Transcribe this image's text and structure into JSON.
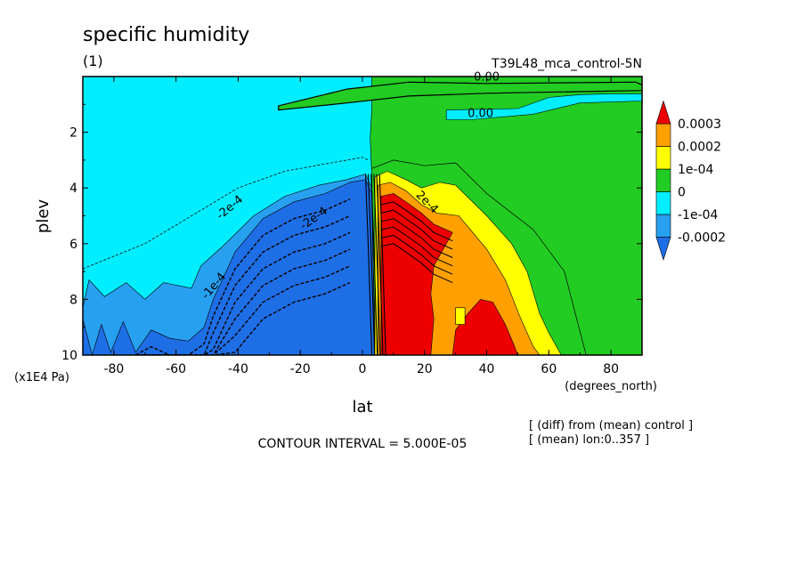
{
  "chart_data": {
    "type": "heatmap",
    "title": "specific humidity",
    "subtitle": "(1)",
    "run_label": "T39L48_mca_control-5N",
    "xlabel": "lat",
    "xunits": "(degrees_north)",
    "ylabel": "plev",
    "yunits": "(x1E4 Pa)",
    "xlim": [
      -90,
      90
    ],
    "ylim": [
      10,
      0
    ],
    "y_inverted": true,
    "xticks": [
      -80,
      -60,
      -40,
      -20,
      0,
      20,
      40,
      60,
      80
    ],
    "yticks": [
      2,
      4,
      6,
      8,
      10
    ],
    "contour_interval_text": "CONTOUR INTERVAL = 5.000E-05",
    "notes": [
      "[ (diff) from (mean) control ]",
      "[ (mean) lon:0..357 ]"
    ],
    "contour_labels": [
      "0.00",
      "0.00",
      "-1e-4",
      "-2e-4",
      "-2e-4",
      "2e-4"
    ],
    "colorbar": {
      "labels": [
        "0.0003",
        "0.0002",
        "1e-04",
        "0",
        "-1e-04",
        "-0.0002"
      ],
      "levels": [
        -0.0002,
        -0.0001,
        0,
        0.0001,
        0.0002,
        0.0003
      ],
      "colors": [
        "#1e6ee6",
        "#28a0f0",
        "#00eeff",
        "#22cc22",
        "#ffff00",
        "#ffa000",
        "#ee0000"
      ]
    },
    "regions": [
      {
        "level_index": 3,
        "points": [
          [
            -90,
            0
          ],
          [
            90,
            0
          ],
          [
            90,
            10
          ],
          [
            -90,
            10
          ]
        ]
      },
      {
        "level_index": 2,
        "points": [
          [
            -90,
            0
          ],
          [
            3,
            0
          ],
          [
            3,
            1.2
          ],
          [
            2.5,
            2.2
          ],
          [
            3,
            3.5
          ],
          [
            4,
            10
          ],
          [
            -90,
            10
          ]
        ]
      },
      {
        "level_index": 3,
        "points": [
          [
            -27,
            1.05
          ],
          [
            -5,
            0.45
          ],
          [
            15,
            0.2
          ],
          [
            40,
            0.25
          ],
          [
            88,
            0.2
          ],
          [
            90,
            0.3
          ],
          [
            90,
            0.5
          ],
          [
            40,
            0.6
          ],
          [
            15,
            0.7
          ],
          [
            -5,
            0.95
          ],
          [
            -27,
            1.2
          ]
        ]
      },
      {
        "level_index": 2,
        "points": [
          [
            27,
            1.2
          ],
          [
            50,
            1.15
          ],
          [
            60,
            0.75
          ],
          [
            70,
            0.65
          ],
          [
            80,
            0.62
          ],
          [
            90,
            0.62
          ],
          [
            90,
            0.88
          ],
          [
            70,
            0.95
          ],
          [
            55,
            1.35
          ],
          [
            35,
            1.55
          ],
          [
            27,
            1.55
          ]
        ]
      },
      {
        "level_index": 1,
        "points": [
          [
            -90,
            8.3
          ],
          [
            -88,
            7.3
          ],
          [
            -83,
            7.9
          ],
          [
            -76,
            7.4
          ],
          [
            -70,
            8.0
          ],
          [
            -64,
            7.4
          ],
          [
            -55,
            7.6
          ],
          [
            -52,
            6.8
          ],
          [
            -45,
            6.1
          ],
          [
            -35,
            5.0
          ],
          [
            -25,
            4.3
          ],
          [
            -14,
            3.9
          ],
          [
            -5,
            3.7
          ],
          [
            1,
            3.5
          ],
          [
            3,
            4.0
          ],
          [
            4,
            10
          ],
          [
            -90,
            10
          ]
        ]
      },
      {
        "level_index": 0,
        "points": [
          [
            -90,
            8.7
          ],
          [
            -87,
            10
          ],
          [
            -84,
            8.9
          ],
          [
            -81,
            9.9
          ],
          [
            -77,
            8.8
          ],
          [
            -73,
            9.9
          ],
          [
            -68,
            9.1
          ],
          [
            -62,
            9.4
          ],
          [
            -56,
            9.5
          ],
          [
            -51,
            9.0
          ],
          [
            -48,
            8.0
          ],
          [
            -41,
            6.3
          ],
          [
            -32,
            5.1
          ],
          [
            -22,
            4.5
          ],
          [
            -12,
            4.2
          ],
          [
            -4,
            3.8
          ],
          [
            1,
            3.7
          ],
          [
            3,
            4.2
          ],
          [
            4,
            10
          ],
          [
            -90,
            10
          ]
        ]
      },
      {
        "level_index": 4,
        "points": [
          [
            4,
            10
          ],
          [
            4,
            3.6
          ],
          [
            8,
            3.4
          ],
          [
            14,
            3.7
          ],
          [
            19,
            4.0
          ],
          [
            25,
            3.8
          ],
          [
            30,
            3.9
          ],
          [
            40,
            5.0
          ],
          [
            48,
            6.0
          ],
          [
            53,
            7.0
          ],
          [
            57,
            8.5
          ],
          [
            60,
            9.2
          ],
          [
            64,
            10
          ]
        ]
      },
      {
        "level_index": 5,
        "points": [
          [
            5,
            10
          ],
          [
            5,
            3.9
          ],
          [
            9,
            3.8
          ],
          [
            14,
            4.1
          ],
          [
            19,
            4.6
          ],
          [
            24,
            4.9
          ],
          [
            31,
            5.0
          ],
          [
            40,
            6.2
          ],
          [
            46,
            7.3
          ],
          [
            51,
            8.7
          ],
          [
            55,
            9.7
          ],
          [
            57,
            10
          ]
        ]
      },
      {
        "level_index": 6,
        "points": [
          [
            6,
            10
          ],
          [
            6,
            4.3
          ],
          [
            10,
            4.2
          ],
          [
            14,
            4.5
          ],
          [
            19,
            4.9
          ],
          [
            23,
            5.3
          ],
          [
            29,
            5.6
          ],
          [
            26,
            6.2
          ],
          [
            23,
            6.8
          ],
          [
            22,
            7.8
          ],
          [
            23,
            8.7
          ],
          [
            22,
            10
          ]
        ]
      },
      {
        "level_index": 6,
        "points": [
          [
            29,
            10
          ],
          [
            30,
            9.1
          ],
          [
            34,
            8.5
          ],
          [
            38,
            8.0
          ],
          [
            42,
            8.1
          ],
          [
            46,
            8.9
          ],
          [
            49,
            9.7
          ],
          [
            50,
            10
          ]
        ]
      },
      {
        "level_index": 4,
        "points": [
          [
            30,
            8.3
          ],
          [
            33,
            8.3
          ],
          [
            33,
            8.9
          ],
          [
            30,
            8.9
          ]
        ]
      }
    ]
  }
}
